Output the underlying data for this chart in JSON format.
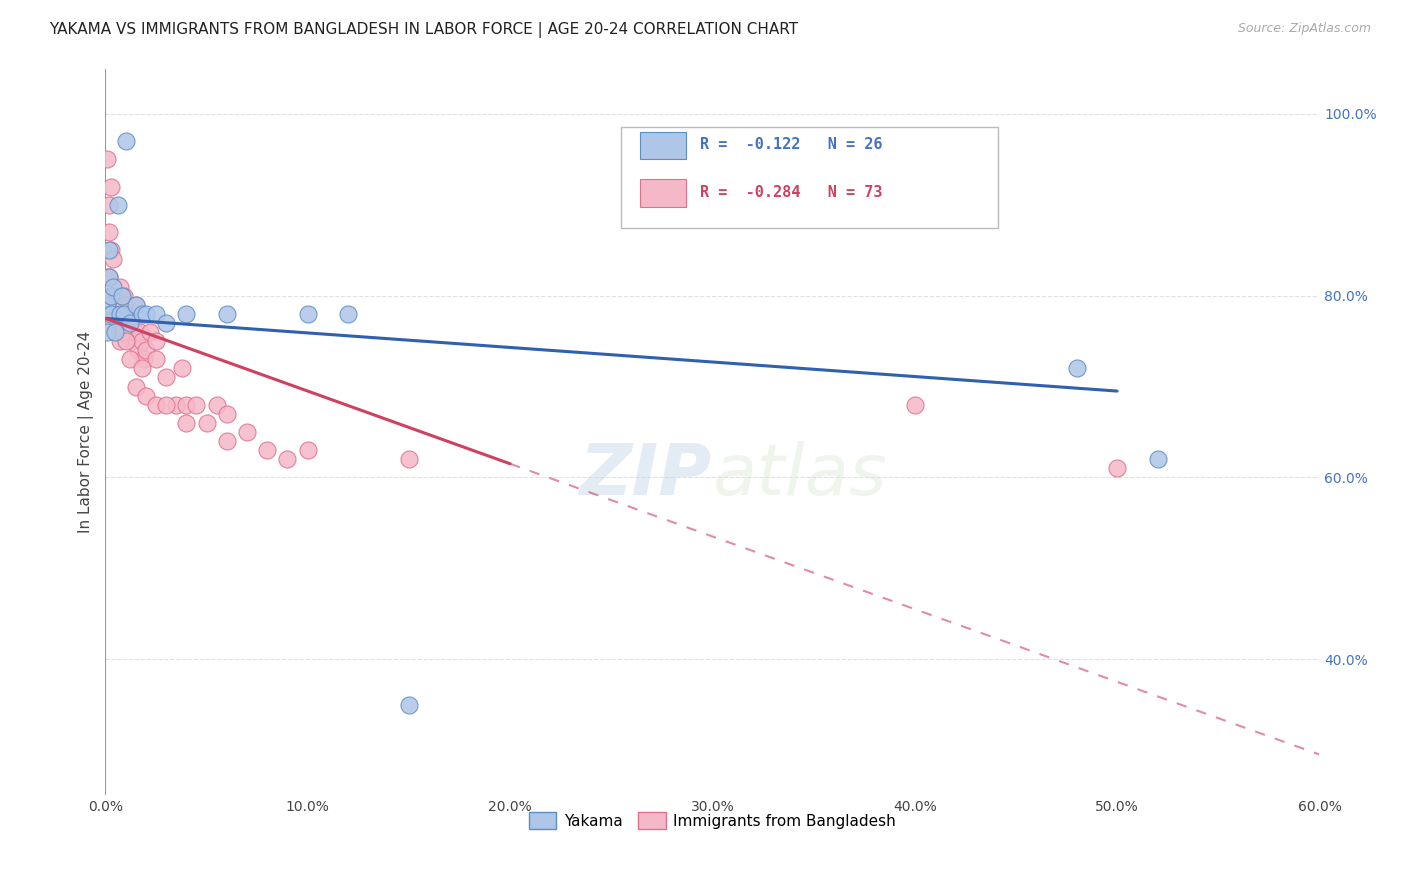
{
  "title": "YAKAMA VS IMMIGRANTS FROM BANGLADESH IN LABOR FORCE | AGE 20-24 CORRELATION CHART",
  "source": "Source: ZipAtlas.com",
  "ylabel": "In Labor Force | Age 20-24",
  "xlim": [
    0.0,
    0.6
  ],
  "ylim": [
    0.25,
    1.05
  ],
  "xticks": [
    0.0,
    0.1,
    0.2,
    0.3,
    0.4,
    0.5,
    0.6
  ],
  "yticks": [
    0.4,
    0.6,
    0.8,
    1.0
  ],
  "background_color": "#ffffff",
  "grid_color": "#e0e0e0",
  "yakama_color": "#aec6e8",
  "bangladesh_color": "#f5b8c8",
  "yakama_edge_color": "#5b8ec4",
  "bangladesh_edge_color": "#e0708c",
  "regression_blue": "#3060b0",
  "regression_pink": "#d04060",
  "R_yakama": -0.122,
  "N_yakama": 26,
  "R_bangladesh": -0.284,
  "N_bangladesh": 73,
  "watermark": "ZIPatlas",
  "yakama_x": [
    0.001,
    0.001,
    0.002,
    0.002,
    0.003,
    0.003,
    0.004,
    0.005,
    0.006,
    0.007,
    0.008,
    0.009,
    0.01,
    0.012,
    0.015,
    0.018,
    0.02,
    0.025,
    0.03,
    0.04,
    0.06,
    0.1,
    0.12,
    0.15,
    0.48,
    0.52
  ],
  "yakama_y": [
    0.76,
    0.79,
    0.82,
    0.85,
    0.8,
    0.78,
    0.81,
    0.76,
    0.9,
    0.78,
    0.8,
    0.78,
    0.97,
    0.77,
    0.79,
    0.78,
    0.78,
    0.78,
    0.77,
    0.78,
    0.78,
    0.78,
    0.78,
    0.35,
    0.72,
    0.62
  ],
  "bangladesh_x": [
    0.001,
    0.001,
    0.001,
    0.002,
    0.002,
    0.002,
    0.003,
    0.003,
    0.003,
    0.004,
    0.004,
    0.004,
    0.005,
    0.005,
    0.006,
    0.006,
    0.007,
    0.007,
    0.007,
    0.008,
    0.008,
    0.009,
    0.009,
    0.01,
    0.01,
    0.011,
    0.012,
    0.013,
    0.014,
    0.015,
    0.015,
    0.016,
    0.017,
    0.018,
    0.019,
    0.02,
    0.022,
    0.025,
    0.025,
    0.03,
    0.035,
    0.038,
    0.04,
    0.045,
    0.05,
    0.055,
    0.06,
    0.07,
    0.08,
    0.09,
    0.001,
    0.001,
    0.002,
    0.003,
    0.004,
    0.005,
    0.006,
    0.007,
    0.008,
    0.009,
    0.01,
    0.012,
    0.015,
    0.018,
    0.02,
    0.025,
    0.03,
    0.04,
    0.06,
    0.1,
    0.15,
    0.4,
    0.5
  ],
  "bangladesh_y": [
    0.82,
    0.79,
    0.95,
    0.9,
    0.87,
    0.82,
    0.85,
    0.92,
    0.8,
    0.84,
    0.8,
    0.78,
    0.8,
    0.78,
    0.8,
    0.76,
    0.8,
    0.775,
    0.81,
    0.78,
    0.76,
    0.8,
    0.76,
    0.79,
    0.76,
    0.78,
    0.76,
    0.75,
    0.76,
    0.76,
    0.79,
    0.74,
    0.76,
    0.75,
    0.73,
    0.74,
    0.76,
    0.73,
    0.75,
    0.71,
    0.68,
    0.72,
    0.68,
    0.68,
    0.66,
    0.68,
    0.67,
    0.65,
    0.63,
    0.62,
    0.78,
    0.77,
    0.79,
    0.8,
    0.77,
    0.78,
    0.79,
    0.75,
    0.76,
    0.79,
    0.75,
    0.73,
    0.7,
    0.72,
    0.69,
    0.68,
    0.68,
    0.66,
    0.64,
    0.63,
    0.62,
    0.68,
    0.61
  ]
}
